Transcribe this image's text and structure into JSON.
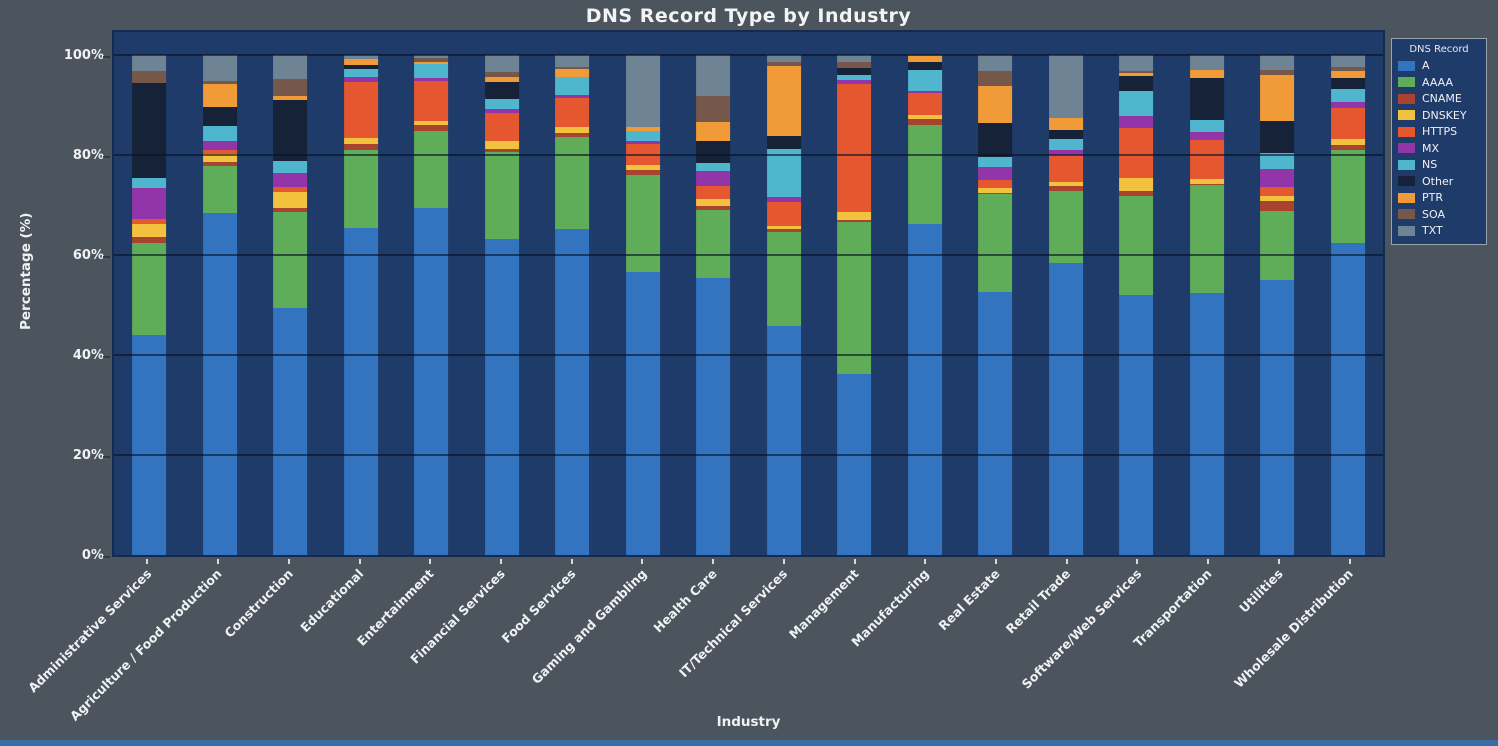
{
  "page": {
    "background": "#4c555d",
    "bottom_strip_color": "#3a6da4"
  },
  "colors": {
    "plot_background": "#1f3b69",
    "plot_frame": "#152a50",
    "gridline": "#0d1830",
    "text": "#f0f1f2"
  },
  "chart_data": {
    "type": "bar",
    "stacked": true,
    "orientation": "vertical",
    "title": "DNS Record Type by Industry",
    "xlabel": "Industry",
    "ylabel": "Percentage (%)",
    "ylim": [
      0,
      100
    ],
    "yticks": [
      0,
      20,
      40,
      60,
      80,
      100
    ],
    "ytick_labels": [
      "0%",
      "20%",
      "40%",
      "60%",
      "80%",
      "100%"
    ],
    "grid": "horizontal",
    "legend_title": "DNS Record",
    "legend_position": "outside-top-right",
    "categories": [
      "Administrative Services",
      "Agriculture / Food Production",
      "Construction",
      "Educational",
      "Entertainment",
      "Financial Services",
      "Food Services",
      "Gaming and Gambling",
      "Health Care",
      "IT/Technical Services",
      "Management",
      "Manufacturing",
      "Real Estate",
      "Retail Trade",
      "Software/Web Services",
      "Transportation",
      "Utilities",
      "Wholesale Distribution"
    ],
    "series": [
      {
        "name": "A",
        "color": "#3274c0",
        "values": [
          44.0,
          68.5,
          49.4,
          65.5,
          69.5,
          63.2,
          65.3,
          56.6,
          55.4,
          45.9,
          36.2,
          66.2,
          52.7,
          58.5,
          52.0,
          52.4,
          55.0,
          62.5
        ]
      },
      {
        "name": "AAAA",
        "color": "#5fac59",
        "values": [
          18.5,
          9.3,
          19.2,
          15.5,
          15.4,
          17.5,
          18.4,
          19.5,
          13.6,
          18.7,
          30.5,
          19.8,
          19.5,
          14.4,
          19.8,
          21.6,
          13.8,
          18.5
        ]
      },
      {
        "name": "CNAME",
        "color": "#a8432f",
        "values": [
          1.2,
          0.9,
          0.8,
          1.2,
          1.2,
          0.6,
          0.7,
          1.0,
          0.9,
          0.7,
          0.3,
          1.3,
          0.2,
          0.9,
          1.1,
          0.2,
          2.1,
          1.0
        ]
      },
      {
        "name": "DNSKEY",
        "color": "#f2c23e",
        "values": [
          2.6,
          1.5,
          3.3,
          1.2,
          0.8,
          1.6,
          1.2,
          0.9,
          1.4,
          0.5,
          1.7,
          0.8,
          1.1,
          0.9,
          2.6,
          1.0,
          1.0,
          1.3
        ]
      },
      {
        "name": "HTTPS",
        "color": "#e5572f",
        "values": [
          1.0,
          0.9,
          0.9,
          11.2,
          7.9,
          5.6,
          5.8,
          4.3,
          2.5,
          4.8,
          25.6,
          4.4,
          1.5,
          5.3,
          9.9,
          7.9,
          1.7,
          6.2
        ]
      },
      {
        "name": "MX",
        "color": "#9135a8",
        "values": [
          6.2,
          1.7,
          2.8,
          1.1,
          0.7,
          0.7,
          0.6,
          0.6,
          3.0,
          1.0,
          0.7,
          0.3,
          2.6,
          1.0,
          2.4,
          1.5,
          3.7,
          1.1
        ]
      },
      {
        "name": "NS",
        "color": "#4fb6ce",
        "values": [
          2.0,
          3.0,
          2.4,
          1.5,
          2.7,
          2.0,
          3.7,
          2.0,
          1.7,
          9.6,
          1.0,
          4.2,
          2.0,
          2.2,
          5.1,
          2.4,
          3.1,
          2.6
        ]
      },
      {
        "name": "Other",
        "color": "#152238",
        "values": [
          19.0,
          3.8,
          12.3,
          0.9,
          0.0,
          3.4,
          0.0,
          0.0,
          4.4,
          2.7,
          1.4,
          1.6,
          6.8,
          1.9,
          2.9,
          8.4,
          6.5,
          2.2
        ]
      },
      {
        "name": "PTR",
        "color": "#f09b38",
        "values": [
          0.0,
          4.7,
          0.7,
          1.2,
          0.4,
          1.1,
          1.5,
          0.7,
          3.8,
          14.0,
          0.0,
          1.2,
          7.5,
          2.4,
          0.7,
          1.6,
          9.1,
          1.4
        ]
      },
      {
        "name": "SOA",
        "color": "#75584a",
        "values": [
          2.4,
          0.6,
          3.4,
          0.0,
          0.8,
          1.0,
          0.4,
          0.0,
          5.1,
          0.8,
          1.2,
          0.0,
          3.0,
          0.0,
          0.3,
          0.0,
          1.0,
          0.9
        ]
      },
      {
        "name": "TXT",
        "color": "#6e8494",
        "values": [
          3.1,
          5.1,
          4.8,
          0.7,
          0.6,
          3.3,
          2.4,
          14.4,
          8.2,
          1.3,
          1.4,
          0.2,
          3.1,
          12.5,
          3.2,
          3.0,
          3.0,
          2.3
        ]
      }
    ]
  }
}
